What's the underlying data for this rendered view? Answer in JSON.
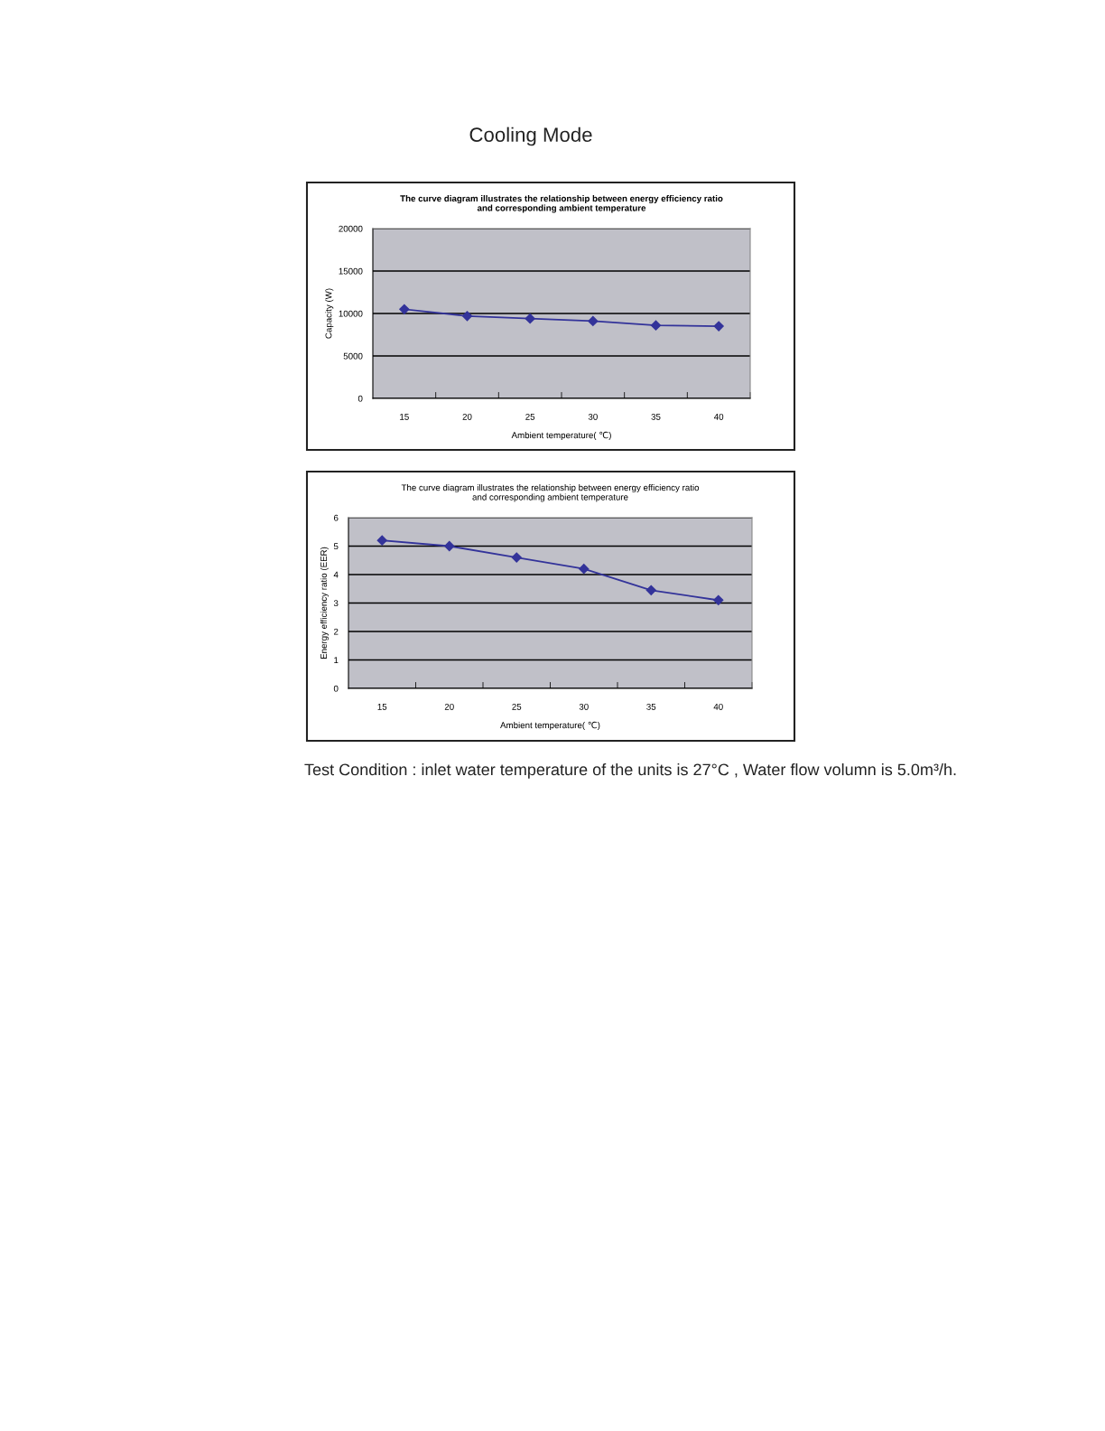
{
  "chart_data": [
    {
      "type": "line",
      "title": "The curve diagram illustrates the relationship between energy efficiency ratio\nand corresponding ambient temperature",
      "xlabel": "Ambient temperature( ℃)",
      "ylabel": "Capacity (W)",
      "categories": [
        "15",
        "20",
        "25",
        "30",
        "35",
        "40"
      ],
      "series": [
        {
          "color": "#33339a",
          "values": [
            10500,
            9700,
            9400,
            9100,
            8600,
            8500
          ]
        }
      ],
      "ylim": [
        0,
        20000
      ],
      "yticks": [
        0,
        5000,
        10000,
        15000,
        20000
      ],
      "grid": "y",
      "marker": "diamond",
      "legend": false,
      "annotations": [
        "Cooling Mode"
      ]
    },
    {
      "type": "line",
      "title": "The curve diagram illustrates the relationship between energy efficiency ratio\nand corresponding ambient temperature",
      "xlabel": "Ambient temperature( ℃)",
      "ylabel": "Energy efficiency ratio (EER)",
      "categories": [
        "15",
        "20",
        "25",
        "30",
        "35",
        "40"
      ],
      "series": [
        {
          "color": "#33339a",
          "values": [
            5.2,
            5.0,
            4.6,
            4.2,
            3.45,
            3.1
          ]
        }
      ],
      "ylim": [
        0,
        6
      ],
      "yticks": [
        0,
        1,
        2,
        3,
        4,
        5,
        6
      ],
      "grid": "y",
      "marker": "diamond",
      "legend": false,
      "annotations": [
        "Test Condition : inlet water temperature of the units is 27°C , Water flow volumn is 5.0m³/h."
      ]
    }
  ]
}
